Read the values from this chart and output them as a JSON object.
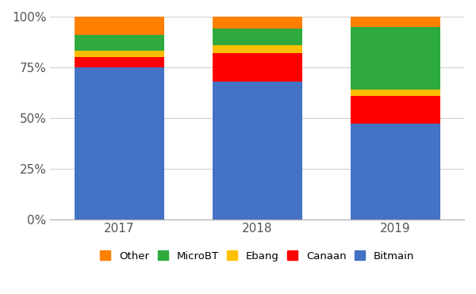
{
  "years": [
    "2017",
    "2018",
    "2019"
  ],
  "series": {
    "Bitmain": [
      75,
      68,
      47
    ],
    "Canaan": [
      5,
      14,
      14
    ],
    "Ebang": [
      3,
      4,
      3
    ],
    "MicroBT": [
      8,
      8,
      31
    ],
    "Other": [
      9,
      6,
      5
    ]
  },
  "colors": {
    "Bitmain": "#4472C4",
    "Canaan": "#FF0000",
    "Ebang": "#FFBF00",
    "MicroBT": "#2EAA3E",
    "Other": "#FF7F00"
  },
  "legend_order": [
    "Other",
    "MicroBT",
    "Ebang",
    "Canaan",
    "Bitmain"
  ],
  "yticks": [
    0,
    25,
    50,
    75,
    100
  ],
  "ytick_labels": [
    "0%",
    "25%",
    "50%",
    "75%",
    "100%"
  ],
  "background_color": "#ffffff",
  "grid_color": "#d0d0d0",
  "bar_width": 0.65
}
